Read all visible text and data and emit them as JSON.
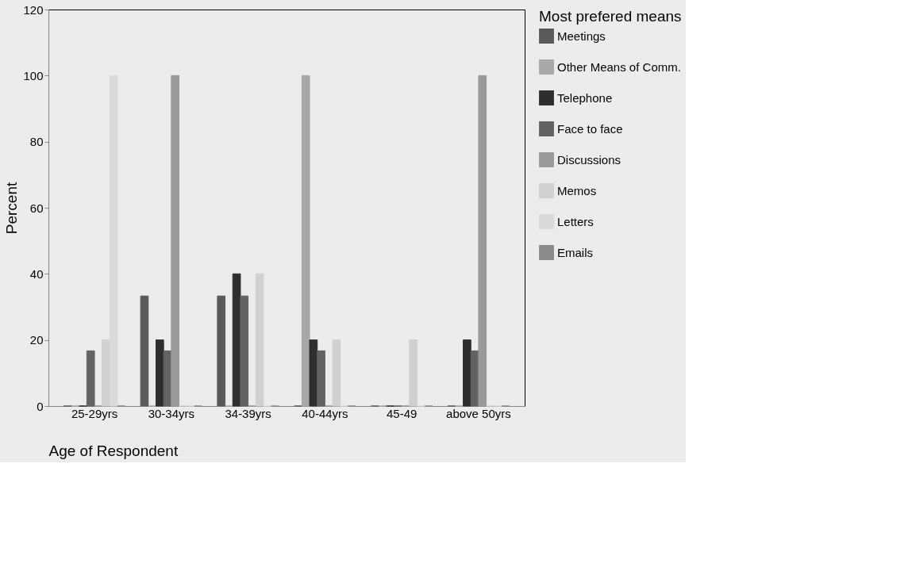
{
  "chart_data": {
    "type": "bar",
    "xlabel": "Age of Respondent",
    "ylabel": "Percent",
    "legend_title": "Most prefered means",
    "legend": "right",
    "grid": false,
    "categories": [
      "25-29yrs",
      "30-34yrs",
      "34-39yrs",
      "40-44yrs",
      "45-49",
      "above 50yrs"
    ],
    "ylim": [
      0,
      120
    ],
    "yticks": [
      0,
      20,
      40,
      60,
      80,
      100,
      120
    ],
    "series": [
      {
        "name": "Meetings",
        "color": "#5a5a5a",
        "values": [
          0,
          33.3,
          33.3,
          0,
          0,
          0
        ]
      },
      {
        "name": "Other Means of Comm.",
        "color": "#a8a8a8",
        "values": [
          0,
          0,
          0,
          100,
          0,
          0
        ]
      },
      {
        "name": "Telephone",
        "color": "#2e2e2e",
        "values": [
          0,
          20,
          40,
          20,
          0,
          20
        ]
      },
      {
        "name": "Face to face",
        "color": "#636363",
        "values": [
          16.7,
          16.7,
          33.3,
          16.7,
          0,
          16.7
        ]
      },
      {
        "name": "Discussions",
        "color": "#999999",
        "values": [
          0,
          100,
          0,
          0,
          0,
          100
        ]
      },
      {
        "name": "Memos",
        "color": "#d0d0d0",
        "values": [
          20,
          0,
          40,
          20,
          20,
          0
        ]
      },
      {
        "name": "Letters",
        "color": "#dadada",
        "values": [
          100,
          0,
          0,
          0,
          0,
          0
        ]
      },
      {
        "name": "Emails",
        "color": "#8a8a8a",
        "values": [
          0,
          0,
          0,
          0,
          0,
          0
        ]
      }
    ]
  }
}
